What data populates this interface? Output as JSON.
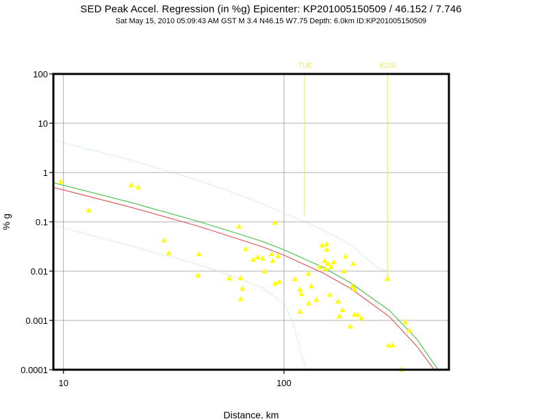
{
  "header": {
    "title": "SED Peak Accel. Regression (in %g) Epicenter: KP201005150509 / 46.152 / 7.746",
    "subtitle": "Sat May 15, 2010 05:09:43 AM GST   M 3.4   N46.15 W7.75   Depth: 6.0km   ID:KP201005150509"
  },
  "colors": {
    "observation": "#ffff00",
    "regression": "#e05050",
    "regression_alt": "#40c040",
    "bounds": "#a8e0a8",
    "station_marker": "#e8e860",
    "grid": "#999999",
    "frame": "#000000"
  },
  "chart_data": {
    "type": "scatter",
    "xscale": "log",
    "yscale": "log",
    "xlim": [
      9,
      560
    ],
    "ylim": [
      0.0001,
      100
    ],
    "xlabel": "Distance, km",
    "ylabel": "% g",
    "grid": true,
    "xticks": [
      {
        "value": 10,
        "label": "10"
      },
      {
        "value": 100,
        "label": "100"
      }
    ],
    "yticks": [
      {
        "value": 100,
        "label": "100"
      },
      {
        "value": 10,
        "label": "10"
      },
      {
        "value": 1,
        "label": "1"
      },
      {
        "value": 0.1,
        "label": "0.1"
      },
      {
        "value": 0.01,
        "label": "0.01"
      },
      {
        "value": 0.001,
        "label": "0.001"
      },
      {
        "value": 0.0001,
        "label": "0.0001"
      }
    ],
    "station_markers": [
      {
        "label": "TUE",
        "distance": 124,
        "value_top": 100,
        "value_bottom": 0.13
      },
      {
        "label": "KOSI",
        "distance": 295,
        "value_top": 100,
        "value_bottom": 0.007
      }
    ],
    "observations": [
      {
        "x": 9.7,
        "y": 0.65
      },
      {
        "x": 13.0,
        "y": 0.17
      },
      {
        "x": 20.3,
        "y": 0.55
      },
      {
        "x": 21.8,
        "y": 0.5
      },
      {
        "x": 28.6,
        "y": 0.042
      },
      {
        "x": 30.0,
        "y": 0.023
      },
      {
        "x": 41.0,
        "y": 0.022
      },
      {
        "x": 40.7,
        "y": 0.0082
      },
      {
        "x": 56.5,
        "y": 0.0071
      },
      {
        "x": 62.5,
        "y": 0.08
      },
      {
        "x": 63.5,
        "y": 0.0072
      },
      {
        "x": 64.7,
        "y": 0.0044
      },
      {
        "x": 63.5,
        "y": 0.0027
      },
      {
        "x": 67.0,
        "y": 0.028
      },
      {
        "x": 72.5,
        "y": 0.017
      },
      {
        "x": 76.0,
        "y": 0.019
      },
      {
        "x": 80.0,
        "y": 0.018
      },
      {
        "x": 81.5,
        "y": 0.0098
      },
      {
        "x": 88.0,
        "y": 0.022
      },
      {
        "x": 89.0,
        "y": 0.016
      },
      {
        "x": 91.0,
        "y": 0.095
      },
      {
        "x": 94.0,
        "y": 0.02
      },
      {
        "x": 91.0,
        "y": 0.0056
      },
      {
        "x": 95.0,
        "y": 0.006
      },
      {
        "x": 112.0,
        "y": 0.0068
      },
      {
        "x": 118.0,
        "y": 0.0042
      },
      {
        "x": 120.0,
        "y": 0.0034
      },
      {
        "x": 118.0,
        "y": 0.0015
      },
      {
        "x": 129.0,
        "y": 0.0088
      },
      {
        "x": 129.0,
        "y": 0.0022
      },
      {
        "x": 133.0,
        "y": 0.0049
      },
      {
        "x": 140.0,
        "y": 0.0026
      },
      {
        "x": 145.0,
        "y": 0.012
      },
      {
        "x": 149.0,
        "y": 0.033
      },
      {
        "x": 153.0,
        "y": 0.016
      },
      {
        "x": 156.0,
        "y": 0.035
      },
      {
        "x": 156.0,
        "y": 0.027
      },
      {
        "x": 158.0,
        "y": 0.014
      },
      {
        "x": 154.0,
        "y": 0.011
      },
      {
        "x": 161.0,
        "y": 0.0033
      },
      {
        "x": 163.0,
        "y": 0.012
      },
      {
        "x": 168.0,
        "y": 0.015
      },
      {
        "x": 176.0,
        "y": 0.0024
      },
      {
        "x": 178.0,
        "y": 0.0012
      },
      {
        "x": 184.0,
        "y": 0.0016
      },
      {
        "x": 187.0,
        "y": 0.0098
      },
      {
        "x": 190.0,
        "y": 0.0198
      },
      {
        "x": 200.0,
        "y": 0.00075
      },
      {
        "x": 204.0,
        "y": 0.0049
      },
      {
        "x": 206.0,
        "y": 0.014
      },
      {
        "x": 209.0,
        "y": 0.0043
      },
      {
        "x": 209.0,
        "y": 0.0013
      },
      {
        "x": 215.0,
        "y": 0.0013
      },
      {
        "x": 224.0,
        "y": 0.0011
      },
      {
        "x": 294.0,
        "y": 0.0069
      },
      {
        "x": 298.0,
        "y": 0.00031
      },
      {
        "x": 311.0,
        "y": 0.00031
      },
      {
        "x": 341.0,
        "y": 0.0001
      },
      {
        "x": 355.0,
        "y": 0.00092
      },
      {
        "x": 370.0,
        "y": 0.00062
      }
    ],
    "series": [
      {
        "id": "regression",
        "color_key": "regression",
        "style": "solid",
        "points": [
          [
            9,
            0.5
          ],
          [
            20,
            0.2
          ],
          [
            40,
            0.084
          ],
          [
            60,
            0.047
          ],
          [
            80,
            0.031
          ],
          [
            100,
            0.021
          ],
          [
            150,
            0.0092
          ],
          [
            200,
            0.0045
          ],
          [
            300,
            0.0012
          ],
          [
            400,
            0.0003
          ],
          [
            480,
            0.0001
          ]
        ]
      },
      {
        "id": "regression-alt",
        "color_key": "regression_alt",
        "style": "solid",
        "points": [
          [
            9,
            0.62
          ],
          [
            20,
            0.25
          ],
          [
            40,
            0.105
          ],
          [
            60,
            0.06
          ],
          [
            80,
            0.04
          ],
          [
            100,
            0.027
          ],
          [
            150,
            0.012
          ],
          [
            200,
            0.0058
          ],
          [
            300,
            0.0016
          ],
          [
            400,
            0.00042
          ],
          [
            500,
            0.0001
          ]
        ]
      },
      {
        "id": "upper-bound",
        "color_key": "bounds",
        "style": "dotted",
        "points": [
          [
            9,
            4.5
          ],
          [
            20,
            1.8
          ],
          [
            40,
            0.72
          ],
          [
            60,
            0.38
          ],
          [
            80,
            0.23
          ],
          [
            100,
            0.15
          ],
          [
            125,
            0.1
          ],
          [
            150,
            0.068
          ],
          [
            200,
            0.035
          ],
          [
            270,
            0.011
          ],
          [
            300,
            0.01
          ],
          [
            520,
            0.01
          ]
        ]
      },
      {
        "id": "lower-bound",
        "color_key": "bounds",
        "style": "dotted",
        "points": [
          [
            9,
            0.085
          ],
          [
            20,
            0.033
          ],
          [
            40,
            0.014
          ],
          [
            60,
            0.0076
          ],
          [
            80,
            0.0046
          ],
          [
            100,
            0.0022
          ],
          [
            110,
            0.0009
          ],
          [
            120,
            0.0002
          ],
          [
            127,
            0.0001
          ]
        ]
      }
    ]
  }
}
